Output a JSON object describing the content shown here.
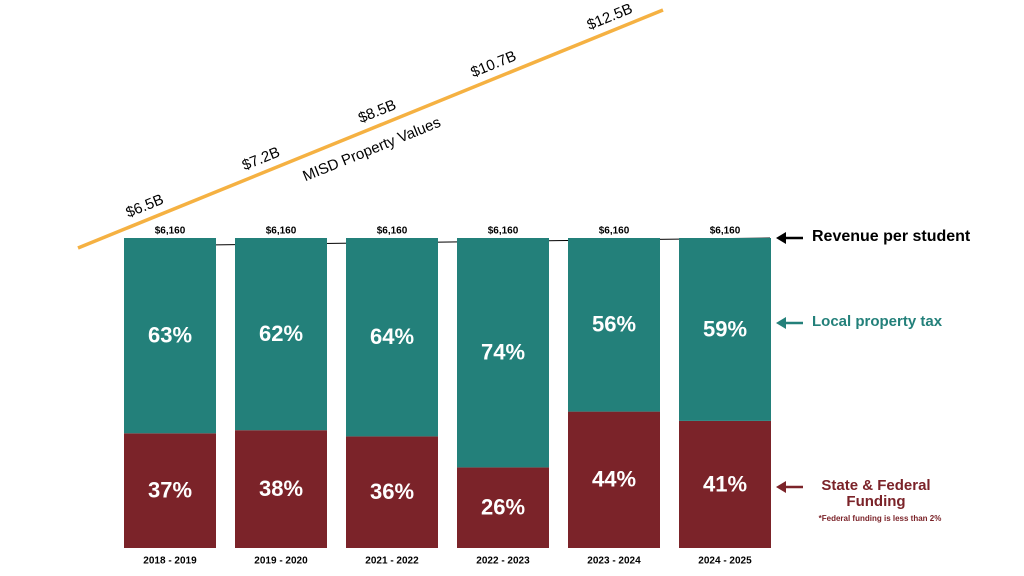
{
  "chart_data": {
    "type": "stacked_bar",
    "categories": [
      "2018 - 2019",
      "2019 - 2020",
      "2021 - 2022",
      "2022 - 2023",
      "2023 - 2024",
      "2024 - 2025"
    ],
    "series": [
      {
        "name": "Local property tax",
        "color": "#23807a",
        "values": [
          63,
          62,
          64,
          74,
          56,
          59
        ],
        "value_labels": [
          "63%",
          "62%",
          "64%",
          "74%",
          "56%",
          "59%"
        ]
      },
      {
        "name": "State & Federal Funding",
        "color": "#7b2329",
        "values": [
          37,
          38,
          36,
          26,
          44,
          41
        ],
        "value_labels": [
          "37%",
          "38%",
          "36%",
          "26%",
          "44%",
          "41%"
        ]
      }
    ],
    "ylim": [
      0,
      100
    ],
    "revenue_per_student": {
      "name": "Revenue per student",
      "values": [
        6160,
        6160,
        6160,
        6160,
        6160,
        6160
      ],
      "value_labels": [
        "$6,160",
        "$6,160",
        "$6,160",
        "$6,160",
        "$6,160",
        "$6,160"
      ]
    },
    "property_values": {
      "name": "MISD Property Values",
      "color": "#f5b142",
      "values": [
        6.5,
        7.2,
        8.5,
        10.7,
        12.5
      ],
      "value_labels": [
        "$6.5B",
        "$7.2B",
        "$8.5B",
        "$10.7B",
        "$12.5B"
      ]
    },
    "footnote": "*Federal funding is less than 2%"
  }
}
